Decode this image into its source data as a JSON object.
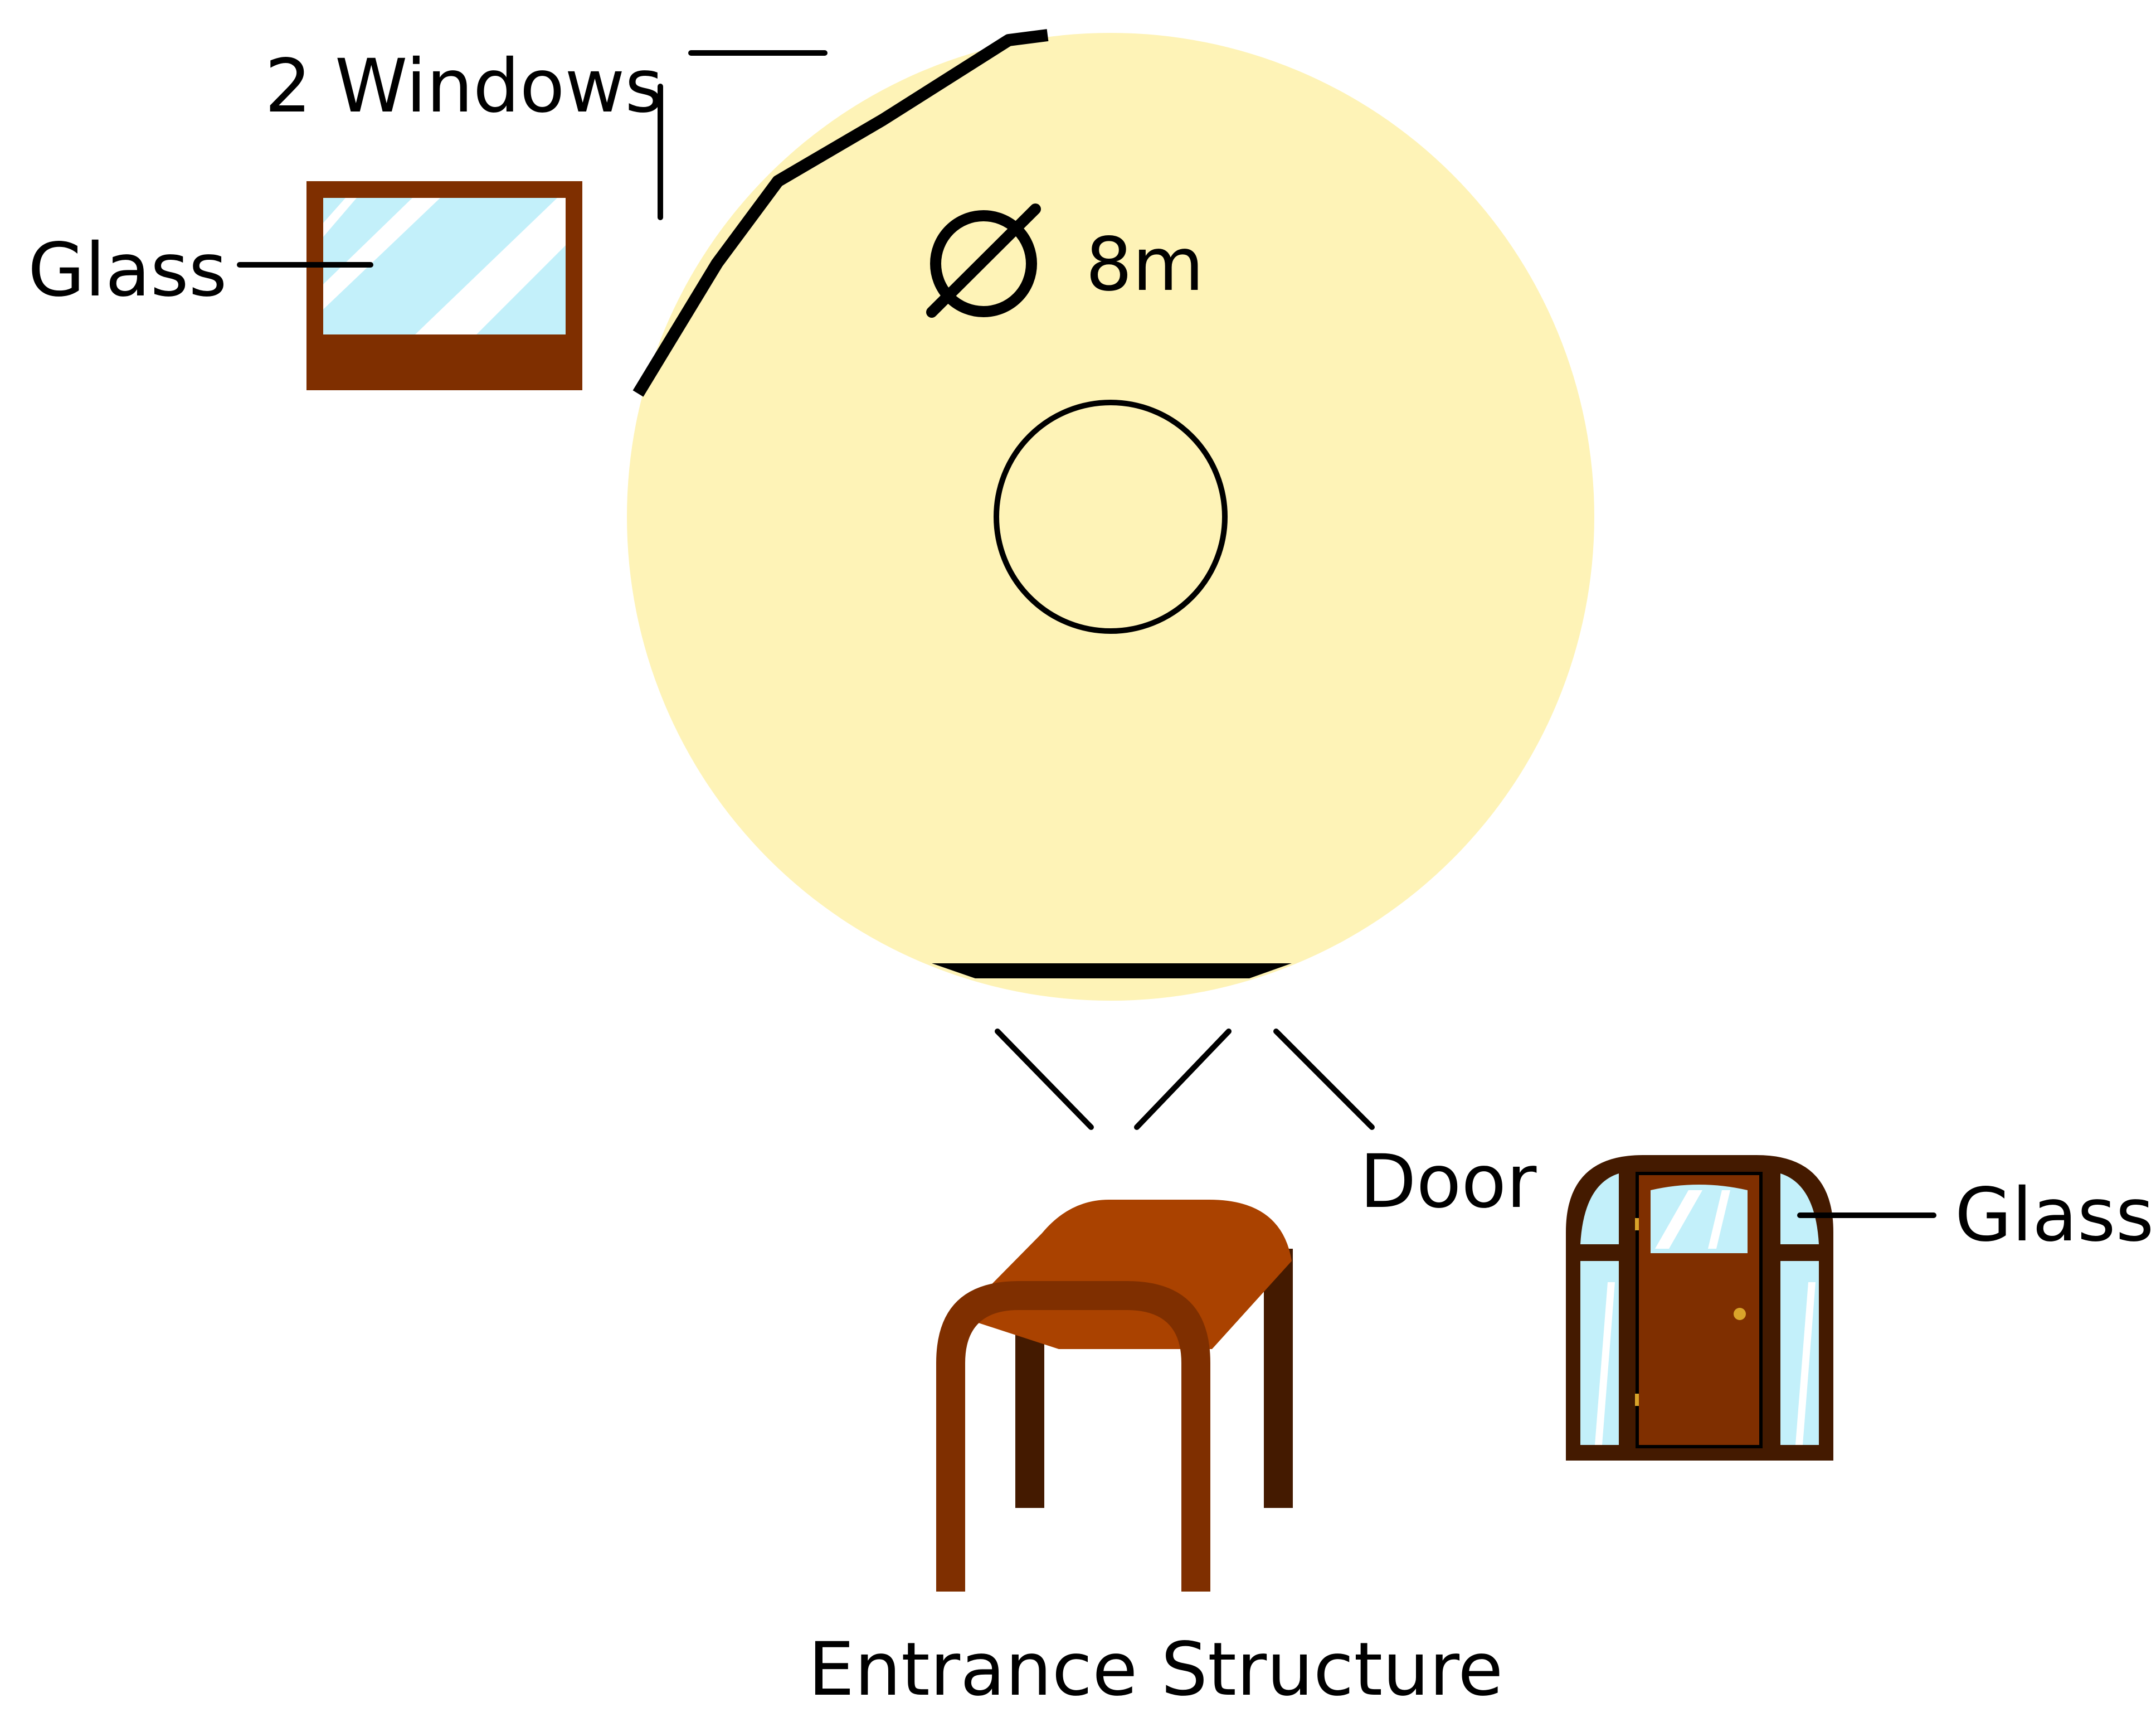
{
  "labels": {
    "windows_count": "2 Windows",
    "window_glass": "Glass",
    "diameter": "8m",
    "door": "Door",
    "door_glass": "Glass",
    "entrance": "Entrance Structure"
  },
  "icons": {
    "diameter_symbol": "diameter-symbol-icon",
    "window": "window-icon",
    "door": "door-icon",
    "entrance": "entrance-structure-icon"
  },
  "colors": {
    "yurt_floor": "#FEF3B7",
    "outline": "#000000",
    "wood_dark": "#441A00",
    "wood_mid": "#7F2F00",
    "wood_light": "#AA4200",
    "glass": "#C3F0FA",
    "glass_shine": "#FFFFFF",
    "door_knob": "#D9A42A"
  }
}
